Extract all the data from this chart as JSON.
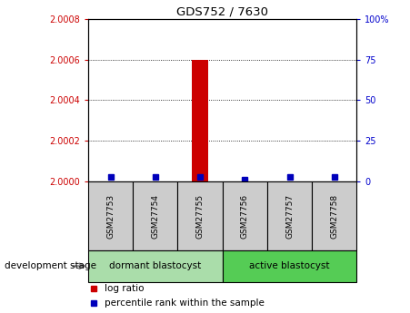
{
  "title": "GDS752 / 7630",
  "samples": [
    "GSM27753",
    "GSM27754",
    "GSM27755",
    "GSM27756",
    "GSM27757",
    "GSM27758"
  ],
  "log_ratio_values": [
    2.0,
    2.0,
    2.0006,
    2.0,
    2.0,
    2.0
  ],
  "percentile_values": [
    3,
    3,
    3,
    1,
    3,
    3
  ],
  "left_ylim": [
    2.0,
    2.0008
  ],
  "left_yticks": [
    2.0,
    2.0002,
    2.0004,
    2.0006,
    2.0008
  ],
  "right_ylim": [
    0,
    100
  ],
  "right_yticks": [
    0,
    25,
    50,
    75,
    100
  ],
  "right_yticklabels": [
    "0",
    "25",
    "50",
    "75",
    "100%"
  ],
  "left_ycolor": "#cc0000",
  "right_ycolor": "#0000cc",
  "bar_color": "#cc0000",
  "dot_color": "#0000bb",
  "groups": [
    {
      "label": "dormant blastocyst",
      "start": 0,
      "end": 3,
      "color": "#aaddaa"
    },
    {
      "label": "active blastocyst",
      "start": 3,
      "end": 6,
      "color": "#55cc55"
    }
  ],
  "group_label": "development stage",
  "legend_log_ratio_color": "#cc0000",
  "legend_percentile_color": "#0000bb",
  "sample_box_color": "#cccccc",
  "background_color": "#ffffff",
  "grid_color": "#000000"
}
